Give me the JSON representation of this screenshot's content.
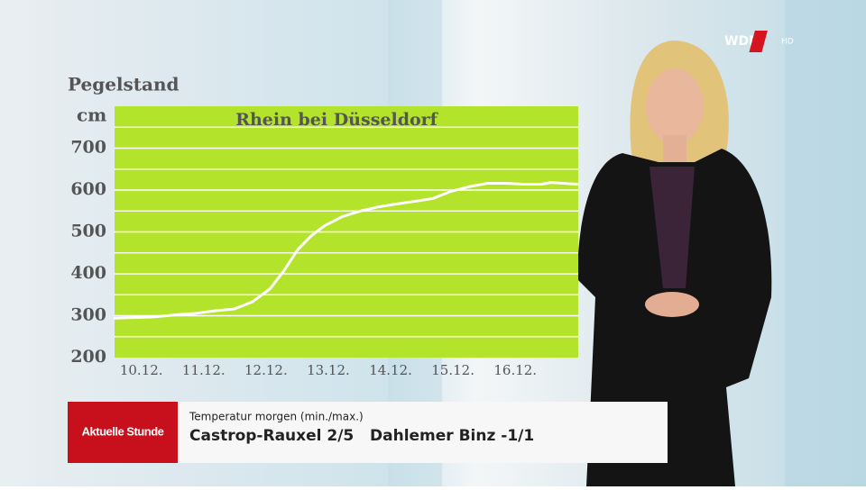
{
  "chart_data": {
    "type": "line",
    "title": "Rhein bei Düsseldorf",
    "ylabel": "Pegelstand",
    "yunit": "cm",
    "xlim": [
      -0.43,
      7.01
    ],
    "xticks": [
      {
        "value": 0,
        "label": "10.12."
      },
      {
        "value": 1,
        "label": "11.12."
      },
      {
        "value": 2,
        "label": "12.12."
      },
      {
        "value": 3,
        "label": "13.12."
      },
      {
        "value": 4,
        "label": "14.12."
      },
      {
        "value": 5,
        "label": "15.12."
      },
      {
        "value": 6,
        "label": "16.12."
      }
    ],
    "ylim": [
      200,
      800
    ],
    "yticks": [
      200,
      300,
      400,
      500,
      600,
      700
    ],
    "grid": true,
    "minor_grid": true,
    "plot_color": "#b3e42b",
    "series": [
      {
        "color": "#ffffff",
        "x": [
          -0.43,
          0.19,
          0.62,
          0.84,
          1.2,
          1.49,
          1.78,
          2.07,
          2.29,
          2.51,
          2.72,
          2.94,
          3.23,
          3.52,
          3.81,
          4.1,
          4.39,
          4.68,
          4.97,
          5.26,
          5.55,
          5.84,
          6.13,
          6.42,
          6.57,
          6.78,
          7.01
        ],
        "values": [
          294,
          297,
          303,
          305,
          312,
          316,
          333,
          365,
          408,
          458,
          490,
          515,
          537,
          550,
          560,
          567,
          573,
          580,
          597,
          608,
          616,
          616,
          614,
          614,
          618,
          616,
          614
        ]
      }
    ]
  },
  "logo": {
    "name": "WDR",
    "badge": "HD"
  },
  "banner": {
    "show": "Aktuelle Stunde",
    "caption": "Temperatur morgen (min./max.)",
    "text": "Castrop-Rauxel 2/5   Dahlemer Binz -1/1"
  }
}
